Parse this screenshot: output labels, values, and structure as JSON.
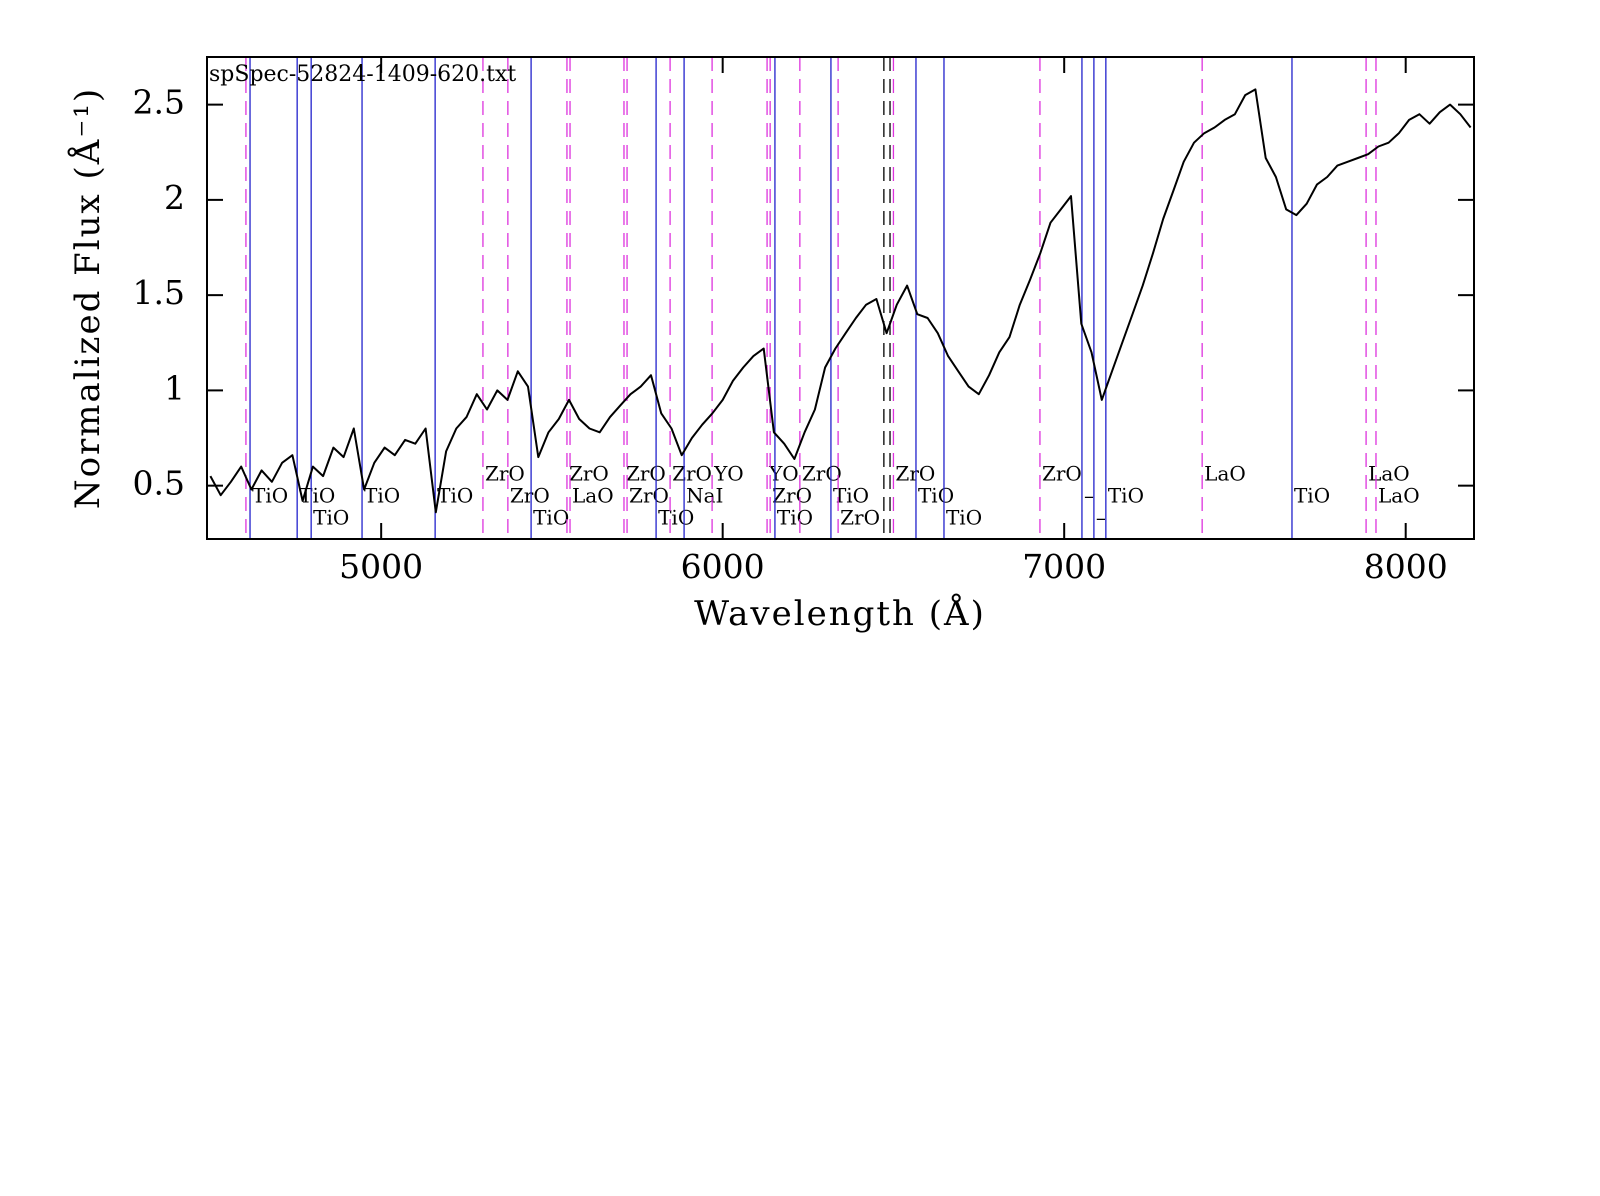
{
  "chart_data": {
    "type": "line",
    "title": "spSpec-52824-1409-620.txt",
    "x_label": "Wavelength (Å)",
    "y_label": "Normalized Flux  (Å⁻¹)",
    "color": "#000000",
    "xlim": [
      4490,
      8200
    ],
    "ylim": [
      0.22,
      2.75
    ],
    "xticks": [
      5000,
      6000,
      7000,
      8000
    ],
    "yticks": [
      0.5,
      1,
      1.5,
      2,
      2.5
    ],
    "x": [
      4500,
      4530,
      4560,
      4590,
      4620,
      4650,
      4680,
      4710,
      4740,
      4770,
      4800,
      4830,
      4860,
      4890,
      4920,
      4950,
      4980,
      5010,
      5040,
      5070,
      5100,
      5130,
      5160,
      5190,
      5220,
      5250,
      5280,
      5310,
      5340,
      5370,
      5400,
      5430,
      5460,
      5490,
      5520,
      5550,
      5580,
      5610,
      5640,
      5670,
      5700,
      5730,
      5760,
      5790,
      5820,
      5850,
      5880,
      5910,
      5940,
      5970,
      6000,
      6030,
      6060,
      6090,
      6120,
      6150,
      6180,
      6210,
      6240,
      6270,
      6300,
      6330,
      6360,
      6390,
      6420,
      6450,
      6480,
      6510,
      6540,
      6570,
      6600,
      6630,
      6660,
      6690,
      6720,
      6750,
      6780,
      6810,
      6840,
      6870,
      6900,
      6930,
      6960,
      6990,
      7020,
      7050,
      7080,
      7110,
      7140,
      7170,
      7200,
      7230,
      7260,
      7290,
      7320,
      7350,
      7380,
      7410,
      7440,
      7470,
      7500,
      7530,
      7560,
      7590,
      7620,
      7650,
      7680,
      7710,
      7740,
      7770,
      7800,
      7830,
      7860,
      7890,
      7920,
      7950,
      7980,
      8010,
      8040,
      8070,
      8100,
      8130,
      8160,
      8190
    ],
    "values": [
      0.55,
      0.45,
      0.52,
      0.6,
      0.48,
      0.58,
      0.52,
      0.62,
      0.66,
      0.42,
      0.6,
      0.55,
      0.7,
      0.65,
      0.8,
      0.48,
      0.62,
      0.7,
      0.66,
      0.74,
      0.72,
      0.8,
      0.36,
      0.68,
      0.8,
      0.86,
      0.98,
      0.9,
      1.0,
      0.95,
      1.1,
      1.02,
      0.65,
      0.78,
      0.85,
      0.95,
      0.85,
      0.8,
      0.78,
      0.86,
      0.92,
      0.98,
      1.02,
      1.08,
      0.88,
      0.8,
      0.66,
      0.75,
      0.82,
      0.88,
      0.95,
      1.05,
      1.12,
      1.18,
      1.22,
      0.78,
      0.72,
      0.64,
      0.78,
      0.9,
      1.12,
      1.22,
      1.3,
      1.38,
      1.45,
      1.48,
      1.3,
      1.45,
      1.55,
      1.4,
      1.38,
      1.3,
      1.18,
      1.1,
      1.02,
      0.98,
      1.08,
      1.2,
      1.28,
      1.45,
      1.58,
      1.72,
      1.88,
      1.95,
      2.02,
      1.35,
      1.2,
      0.95,
      1.1,
      1.25,
      1.4,
      1.55,
      1.72,
      1.9,
      2.05,
      2.2,
      2.3,
      2.35,
      2.38,
      2.42,
      2.45,
      2.55,
      2.58,
      2.22,
      2.12,
      1.95,
      1.92,
      1.98,
      2.08,
      2.12,
      2.18,
      2.2,
      2.22,
      2.24,
      2.28,
      2.3,
      2.35,
      2.42,
      2.45,
      2.4,
      2.46,
      2.5,
      2.45,
      2.38
    ],
    "lines": [
      {
        "wavelength": 4604,
        "color": "#dd33dd",
        "style": "dashed"
      },
      {
        "wavelength": 4616,
        "species": "TiO",
        "color": "#2222cc",
        "style": "solid"
      },
      {
        "wavelength": 4754,
        "species": "TiO",
        "color": "#2222cc",
        "style": "solid"
      },
      {
        "wavelength": 4795,
        "species": "TiO",
        "color": "#2222cc",
        "style": "solid"
      },
      {
        "wavelength": 4944,
        "species": "TiO",
        "color": "#2222cc",
        "style": "solid"
      },
      {
        "wavelength": 5158,
        "species": "TiO",
        "color": "#2222cc",
        "style": "solid"
      },
      {
        "wavelength": 5298,
        "species": "ZrO",
        "color": "#dd33dd",
        "style": "dashed"
      },
      {
        "wavelength": 5371,
        "species": "ZrO",
        "color": "#dd33dd",
        "style": "dashed"
      },
      {
        "wavelength": 5439,
        "species": "TiO",
        "color": "#2222cc",
        "style": "solid"
      },
      {
        "wavelength": 5544,
        "species": "ZrO",
        "color": "#dd33dd",
        "style": "dashed"
      },
      {
        "wavelength": 5553,
        "species": "LaO",
        "color": "#dd33dd",
        "style": "dashed"
      },
      {
        "wavelength": 5711,
        "species": "ZrO",
        "color": "#dd33dd",
        "style": "dashed"
      },
      {
        "wavelength": 5720,
        "species": "ZrO",
        "color": "#dd33dd",
        "style": "dashed"
      },
      {
        "wavelength": 5805,
        "species": "TiO",
        "color": "#2222cc",
        "style": "solid"
      },
      {
        "wavelength": 5846,
        "species": "ZrO",
        "color": "#dd33dd",
        "style": "dashed"
      },
      {
        "wavelength": 5887,
        "species": "NaI",
        "color": "#2222cc",
        "style": "solid"
      },
      {
        "wavelength": 5969,
        "species": "YO",
        "color": "#dd33dd",
        "style": "dashed"
      },
      {
        "wavelength": 6130,
        "species": "YO",
        "color": "#dd33dd",
        "style": "dashed"
      },
      {
        "wavelength": 6139,
        "species": "ZrO",
        "color": "#dd33dd",
        "style": "dashed"
      },
      {
        "wavelength": 6153,
        "species": "TiO",
        "color": "#2222cc",
        "style": "solid"
      },
      {
        "wavelength": 6226,
        "species": "ZrO",
        "color": "#dd33dd",
        "style": "dashed"
      },
      {
        "wavelength": 6317,
        "species": "TiO",
        "color": "#2222cc",
        "style": "solid"
      },
      {
        "wavelength": 6338,
        "species": "ZrO",
        "color": "#dd33dd",
        "style": "dashed"
      },
      {
        "wavelength": 6472,
        "color": "#000000",
        "style": "dashed"
      },
      {
        "wavelength": 6490,
        "color": "#000000",
        "style": "dashed"
      },
      {
        "wavelength": 6500,
        "species": "ZrO",
        "color": "#dd33dd",
        "style": "dashed"
      },
      {
        "wavelength": 6566,
        "species": "TiO",
        "color": "#2222cc",
        "style": "solid"
      },
      {
        "wavelength": 6648,
        "species": "TiO",
        "color": "#2222cc",
        "style": "solid"
      },
      {
        "wavelength": 6929,
        "species": "ZrO",
        "color": "#dd33dd",
        "style": "dashed"
      },
      {
        "wavelength": 7052,
        "species": "–",
        "color": "#2222cc",
        "style": "solid"
      },
      {
        "wavelength": 7087,
        "species": "–",
        "color": "#2222cc",
        "style": "solid"
      },
      {
        "wavelength": 7122,
        "species": "TiO",
        "color": "#2222cc",
        "style": "solid"
      },
      {
        "wavelength": 7404,
        "species": "LaO",
        "color": "#dd33dd",
        "style": "dashed"
      },
      {
        "wavelength": 7667,
        "species": "TiO",
        "color": "#2222cc",
        "style": "solid"
      },
      {
        "wavelength": 7884,
        "species": "LaO",
        "color": "#dd33dd",
        "style": "dashed"
      },
      {
        "wavelength": 7913,
        "species": "LaO",
        "color": "#dd33dd",
        "style": "dashed"
      }
    ]
  }
}
